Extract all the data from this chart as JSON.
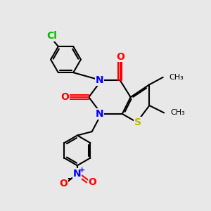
{
  "bg_color": "#e8e8e8",
  "bond_color": "#000000",
  "N_color": "#0000ff",
  "O_color": "#ff0000",
  "S_color": "#b8b800",
  "Cl_color": "#00bb00",
  "lw": 1.5,
  "dpi": 100,
  "figsize": [
    3.0,
    3.0
  ],
  "xlim": [
    0,
    10
  ],
  "ylim": [
    0,
    10
  ]
}
